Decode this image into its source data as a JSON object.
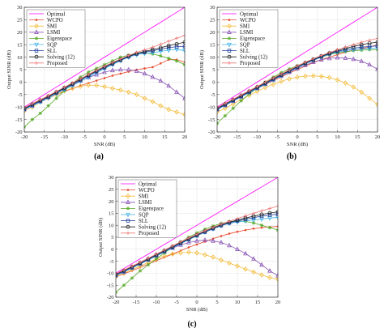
{
  "chart_data": [
    {
      "type": "line",
      "caption": "(a)",
      "xlabel": "SNR (dB)",
      "ylabel": "Output SINR (dB)",
      "xlim": [
        -20,
        20
      ],
      "ylim": [
        -20,
        30
      ],
      "xticks": [
        "-20",
        "-15",
        "-10",
        "-5",
        "0",
        "5",
        "10",
        "15",
        "20"
      ],
      "yticks": [
        "-20",
        "-15",
        "-10",
        "-5",
        "0",
        "5",
        "10",
        "15",
        "20",
        "25",
        "30"
      ],
      "grid": true,
      "legend": "top-left",
      "x": [
        -20,
        -18,
        -16,
        -14,
        -12,
        -10,
        -8,
        -6,
        -4,
        -2,
        0,
        2,
        4,
        6,
        8,
        10,
        12,
        14,
        16,
        18,
        20
      ],
      "series": [
        {
          "name": "Optimal",
          "color": "#ff00ff",
          "marker": "none",
          "values": [
            -10,
            -8,
            -6,
            -4,
            -2,
            0,
            2,
            4,
            6,
            8,
            10,
            12,
            14,
            16,
            18,
            20,
            22,
            24,
            26,
            28,
            30
          ]
        },
        {
          "name": "WCPO",
          "color": "#e8482c",
          "marker": "dot",
          "values": [
            -11,
            -9.5,
            -8,
            -6.5,
            -5,
            -3.8,
            -2.5,
            -1.4,
            -0.4,
            0.6,
            1.6,
            2.6,
            3.4,
            4.2,
            5,
            5.5,
            6,
            7.5,
            9,
            9,
            8
          ]
        },
        {
          "name": "SMI",
          "color": "#f3bd3c",
          "marker": "diamond",
          "values": [
            -11.5,
            -10,
            -8,
            -6.5,
            -5,
            -3.5,
            -2.5,
            -1.7,
            -1.2,
            -1.3,
            -1.8,
            -2.5,
            -3.2,
            -4,
            -5,
            -6.5,
            -7.8,
            -9.5,
            -11,
            -12,
            -13
          ]
        },
        {
          "name": "LSMI",
          "color": "#8a56b6",
          "marker": "triangle",
          "values": [
            -11,
            -9.5,
            -7.8,
            -6,
            -4.3,
            -2.6,
            -1,
            0.5,
            1.8,
            3,
            4,
            4.7,
            5,
            5,
            4.4,
            3.4,
            2,
            0.5,
            -1.5,
            -4,
            -6.5
          ]
        },
        {
          "name": "Eigenspace",
          "color": "#5aab2c",
          "marker": "asterisk",
          "values": [
            -18,
            -15,
            -12.5,
            -9.5,
            -6.5,
            -3.5,
            -0.5,
            2,
            4,
            5.5,
            7,
            8.5,
            10,
            10.8,
            11.5,
            11.7,
            11.3,
            10.5,
            9.5,
            8.5,
            7
          ]
        },
        {
          "name": "SQP",
          "color": "#40b4e6",
          "marker": "triangle-down",
          "values": [
            -11,
            -9.5,
            -8,
            -6.4,
            -4.7,
            -3,
            -1.4,
            0.3,
            2,
            3.7,
            5.4,
            7,
            8.6,
            10,
            11,
            11.5,
            11.8,
            12.3,
            12.8,
            13.1,
            12.6
          ]
        },
        {
          "name": "SLL",
          "color": "#1f3e9c",
          "marker": "square",
          "values": [
            -10.8,
            -9.2,
            -7.6,
            -6,
            -4.3,
            -2.6,
            -0.9,
            0.8,
            2.5,
            4.2,
            5.8,
            7.3,
            8.8,
            10.2,
            11.3,
            12,
            12.6,
            13.2,
            13.8,
            14.2,
            14.3
          ]
        },
        {
          "name": "Solving (12)",
          "color": "#222222",
          "marker": "circle",
          "values": [
            -10.5,
            -8.9,
            -7.3,
            -5.7,
            -4,
            -2.3,
            -0.6,
            1.1,
            2.8,
            4.5,
            6.1,
            7.6,
            9,
            10.4,
            11.5,
            12.3,
            13,
            13.8,
            14.6,
            15.3,
            16
          ]
        },
        {
          "name": "Proposed",
          "color": "#f07a7a",
          "marker": "plus",
          "values": [
            -10.2,
            -8.6,
            -7,
            -5.4,
            -3.7,
            -2,
            -0.3,
            1.4,
            3.1,
            4.8,
            6.4,
            7.9,
            9.3,
            10.7,
            11.9,
            12.9,
            14,
            15.2,
            16.4,
            17.6,
            18.7
          ]
        }
      ]
    },
    {
      "type": "line",
      "caption": "(b)",
      "xlabel": "SNR (dB)",
      "ylabel": "Output SINR (dB)",
      "xlim": [
        -20,
        20
      ],
      "ylim": [
        -20,
        30
      ],
      "xticks": [
        "-20",
        "-15",
        "-10",
        "-5",
        "0",
        "5",
        "10",
        "15",
        "20"
      ],
      "yticks": [
        "-20",
        "-15",
        "-10",
        "-5",
        "0",
        "5",
        "10",
        "15",
        "20",
        "25",
        "30"
      ],
      "grid": true,
      "legend": "top-left",
      "x": [
        -20,
        -18,
        -16,
        -14,
        -12,
        -10,
        -8,
        -6,
        -4,
        -2,
        0,
        2,
        4,
        6,
        8,
        10,
        12,
        14,
        16,
        18,
        20
      ],
      "series": [
        {
          "name": "Optimal",
          "color": "#ff00ff",
          "marker": "none",
          "values": [
            -10,
            -8,
            -6,
            -4,
            -2,
            0,
            2,
            4,
            6,
            8,
            10,
            12,
            14,
            16,
            18,
            20,
            22,
            24,
            26,
            28,
            30
          ]
        },
        {
          "name": "WCPO",
          "color": "#e8482c",
          "marker": "dot",
          "values": [
            -11,
            -9.3,
            -7.6,
            -5.9,
            -4.2,
            -2.6,
            -1,
            0.6,
            2,
            3.6,
            5,
            6.4,
            7.8,
            9,
            10,
            11,
            12,
            12.8,
            13.5,
            14,
            15
          ]
        },
        {
          "name": "SMI",
          "color": "#f3bd3c",
          "marker": "diamond",
          "values": [
            -12,
            -10.5,
            -8.8,
            -7,
            -5.3,
            -3.7,
            -2.2,
            -0.9,
            0.3,
            1.3,
            2,
            2.4,
            2.5,
            2.3,
            1.8,
            0.9,
            -0.4,
            -2,
            -4,
            -6.5,
            -9
          ]
        },
        {
          "name": "LSMI",
          "color": "#8a56b6",
          "marker": "triangle",
          "values": [
            -11,
            -9.3,
            -7.6,
            -5.9,
            -4.2,
            -2.5,
            -0.8,
            0.9,
            2.5,
            4,
            5.5,
            6.8,
            8,
            9,
            9.5,
            9.8,
            9.6,
            9.2,
            8.4,
            7,
            5.2
          ]
        },
        {
          "name": "Eigenspace",
          "color": "#5aab2c",
          "marker": "asterisk",
          "values": [
            -16.5,
            -13.5,
            -10.5,
            -7.5,
            -4.8,
            -2.3,
            0,
            2,
            3.8,
            5.3,
            6.6,
            7.8,
            9,
            10,
            11,
            11.7,
            12.2,
            12.6,
            12.8,
            13,
            13
          ]
        },
        {
          "name": "SQP",
          "color": "#40b4e6",
          "marker": "triangle-down",
          "values": [
            -11,
            -9.3,
            -7.6,
            -5.9,
            -4.2,
            -2.5,
            -0.8,
            0.9,
            2.6,
            4.2,
            5.8,
            7.3,
            8.7,
            10,
            11.2,
            12,
            12.6,
            13,
            13.3,
            13.5,
            13.6
          ]
        },
        {
          "name": "SLL",
          "color": "#1f3e9c",
          "marker": "square",
          "values": [
            -10.8,
            -9.1,
            -7.4,
            -5.7,
            -4,
            -2.3,
            -0.6,
            1.1,
            2.8,
            4.4,
            6,
            7.5,
            8.9,
            10.2,
            11.4,
            12.3,
            13,
            13.6,
            14,
            14.3,
            14.5
          ]
        },
        {
          "name": "Solving (12)",
          "color": "#222222",
          "marker": "circle",
          "values": [
            -10.5,
            -8.8,
            -7.1,
            -5.4,
            -3.7,
            -2,
            -0.3,
            1.4,
            3,
            4.6,
            6.2,
            7.7,
            9.1,
            10.4,
            11.6,
            12.6,
            13.5,
            14.3,
            15,
            15.6,
            16
          ]
        },
        {
          "name": "Proposed",
          "color": "#f07a7a",
          "marker": "plus",
          "values": [
            -10.2,
            -8.5,
            -6.8,
            -5.1,
            -3.4,
            -1.7,
            0,
            1.7,
            3.3,
            4.9,
            6.5,
            8,
            9.4,
            10.7,
            11.9,
            13,
            14,
            15,
            16,
            16.8,
            17.5
          ]
        }
      ]
    },
    {
      "type": "line",
      "caption": "(c)",
      "xlabel": "SNR (dB)",
      "ylabel": "Output SINR (dB)",
      "xlim": [
        -20,
        20
      ],
      "ylim": [
        -20,
        30
      ],
      "xticks": [
        "-20",
        "-15",
        "-10",
        "-5",
        "0",
        "5",
        "10",
        "15",
        "20"
      ],
      "yticks": [
        "-20",
        "-15",
        "-10",
        "-5",
        "0",
        "5",
        "10",
        "15",
        "20",
        "25",
        "30"
      ],
      "grid": true,
      "legend": "top-left",
      "x": [
        -20,
        -18,
        -16,
        -14,
        -12,
        -10,
        -8,
        -6,
        -4,
        -2,
        0,
        2,
        4,
        6,
        8,
        10,
        12,
        14,
        16,
        18,
        20
      ],
      "series": [
        {
          "name": "Optimal",
          "color": "#ff00ff",
          "marker": "none",
          "values": [
            -10,
            -8,
            -6,
            -4,
            -2,
            0,
            2,
            4,
            6,
            8,
            10,
            12,
            14,
            16,
            18,
            20,
            22,
            24,
            26,
            28,
            30
          ]
        },
        {
          "name": "WCPO",
          "color": "#e8482c",
          "marker": "dot",
          "values": [
            -11.5,
            -10.3,
            -9,
            -7.6,
            -6.2,
            -4.8,
            -3.4,
            -2,
            -0.6,
            0.8,
            2,
            3.2,
            4.4,
            5.5,
            6.5,
            7.3,
            8,
            8.6,
            9,
            9.3,
            9.5
          ]
        },
        {
          "name": "SMI",
          "color": "#f3bd3c",
          "marker": "diamond",
          "values": [
            -11.5,
            -10,
            -8.5,
            -7,
            -5.5,
            -4,
            -2.8,
            -2,
            -1.5,
            -1.2,
            -1.5,
            -2.3,
            -3.3,
            -4.5,
            -5.8,
            -7,
            -8.3,
            -9.5,
            -10.7,
            -11.8,
            -12.5
          ]
        },
        {
          "name": "LSMI",
          "color": "#8a56b6",
          "marker": "triangle",
          "values": [
            -11,
            -9.5,
            -7.8,
            -6,
            -4.3,
            -2.6,
            -1,
            0.5,
            1.8,
            2.8,
            3.5,
            3.8,
            3.5,
            2.8,
            1.6,
            0,
            -1.8,
            -4,
            -6.5,
            -9,
            -11
          ]
        },
        {
          "name": "Eigenspace",
          "color": "#5aab2c",
          "marker": "asterisk",
          "values": [
            -18,
            -15,
            -12,
            -9,
            -6.5,
            -4,
            -1.5,
            0.8,
            3,
            5,
            6.8,
            8.4,
            9.7,
            10.8,
            11.5,
            11.8,
            11.6,
            11,
            10,
            9,
            8
          ]
        },
        {
          "name": "SQP",
          "color": "#40b4e6",
          "marker": "triangle-down",
          "values": [
            -11,
            -9.4,
            -7.8,
            -6.2,
            -4.5,
            -2.8,
            -1.1,
            0.6,
            2.3,
            4,
            5.6,
            7.1,
            8.5,
            9.8,
            10.8,
            11.4,
            11.8,
            12.2,
            12.6,
            13,
            13.3
          ]
        },
        {
          "name": "SLL",
          "color": "#1f3e9c",
          "marker": "square",
          "values": [
            -10.8,
            -9.2,
            -7.6,
            -6,
            -4.3,
            -2.6,
            -0.9,
            0.8,
            2.5,
            4.1,
            5.7,
            7.2,
            8.6,
            9.9,
            11,
            11.8,
            12.5,
            13.2,
            13.8,
            14.3,
            14.6
          ]
        },
        {
          "name": "Solving (12)",
          "color": "#222222",
          "marker": "circle",
          "values": [
            -10.5,
            -8.9,
            -7.3,
            -5.7,
            -4,
            -2.3,
            -0.6,
            1.1,
            2.8,
            4.4,
            6,
            7.5,
            8.9,
            10.2,
            11.3,
            12.2,
            13,
            13.8,
            14.5,
            15.1,
            15.6
          ]
        },
        {
          "name": "Proposed",
          "color": "#f07a7a",
          "marker": "plus",
          "values": [
            -10.2,
            -8.6,
            -7,
            -5.4,
            -3.7,
            -2,
            -0.3,
            1.4,
            3.1,
            4.7,
            6.3,
            7.8,
            9.2,
            10.5,
            11.7,
            12.8,
            13.9,
            15,
            16,
            17,
            18
          ]
        }
      ]
    }
  ]
}
